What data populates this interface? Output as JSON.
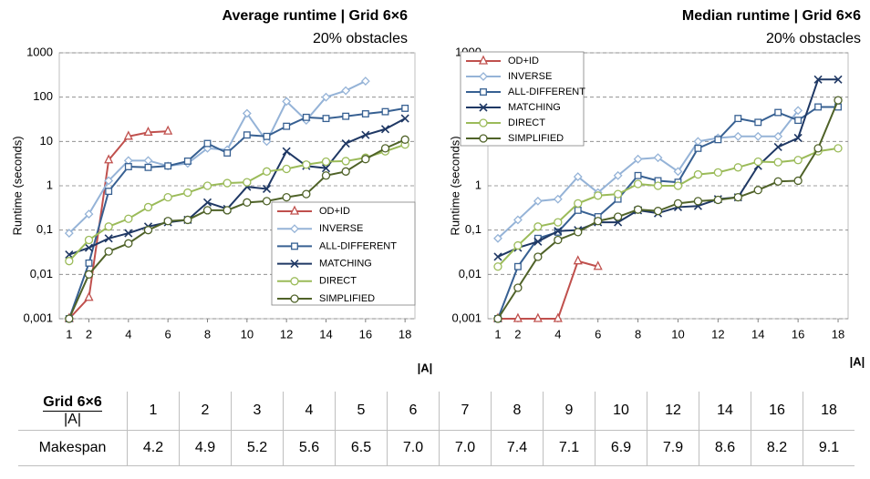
{
  "chart_data": [
    {
      "type": "line",
      "title": "Average runtime | Grid 6×6",
      "subtitle": "20% obstacles",
      "ylabel": "Runtime (seconds)",
      "xlabel": "|A|",
      "ylog": true,
      "grid": true,
      "legend": "lower right",
      "xlim": [
        0.5,
        18.5
      ],
      "xticks": [
        1,
        2,
        4,
        6,
        8,
        10,
        12,
        14,
        16,
        18
      ],
      "ylim": [
        0.001,
        1000
      ],
      "yticks": [
        {
          "value": 0.001,
          "label": "0,001"
        },
        {
          "value": 0.01,
          "label": "0,01"
        },
        {
          "value": 0.1,
          "label": "0,1"
        },
        1,
        10,
        100,
        1000
      ],
      "x": [
        1,
        2,
        3,
        4,
        5,
        6,
        7,
        8,
        9,
        10,
        11,
        12,
        13,
        14,
        15,
        16,
        17,
        18
      ],
      "series": [
        {
          "name": "OD+ID",
          "color": "#c0504d",
          "marker": "triangle",
          "values": [
            0.001,
            0.003,
            3.8,
            13,
            16,
            17,
            null,
            null,
            null,
            null,
            null,
            null,
            null,
            null,
            null,
            null,
            null,
            null
          ]
        },
        {
          "name": "INVERSE",
          "color": "#95b3d7",
          "marker": "diamond",
          "values": [
            0.085,
            0.23,
            1.3,
            3.7,
            3.7,
            2.8,
            3.2,
            7,
            6.5,
            43,
            10,
            80,
            30,
            100,
            140,
            230,
            null,
            null
          ]
        },
        {
          "name": "ALL-DIFFERENT",
          "color": "#376092",
          "marker": "square",
          "values": [
            0.001,
            0.018,
            0.75,
            2.7,
            2.6,
            2.8,
            3.6,
            9,
            5.5,
            14,
            13,
            22,
            35,
            33,
            37,
            42,
            47,
            56
          ]
        },
        {
          "name": "MATCHING",
          "color": "#1f3864",
          "marker": "x",
          "values": [
            0.028,
            0.04,
            0.065,
            0.085,
            0.12,
            0.15,
            0.17,
            0.42,
            0.3,
            0.95,
            0.85,
            6,
            2.8,
            2.5,
            9,
            14,
            19,
            33
          ]
        },
        {
          "name": "DIRECT",
          "color": "#9bbb59",
          "marker": "circle",
          "values": [
            0.02,
            0.06,
            0.12,
            0.18,
            0.33,
            0.55,
            0.7,
            1.0,
            1.15,
            1.2,
            2.1,
            2.4,
            3,
            3.5,
            3.6,
            4.3,
            6,
            8.5
          ]
        },
        {
          "name": "SIMPLIFIED",
          "color": "#4f6228",
          "marker": "circle",
          "values": [
            0.001,
            0.01,
            0.033,
            0.05,
            0.1,
            0.16,
            0.17,
            0.28,
            0.28,
            0.42,
            0.45,
            0.55,
            0.65,
            1.7,
            2.1,
            4,
            7,
            11
          ]
        }
      ]
    },
    {
      "type": "line",
      "title": "Median runtime | Grid 6×6",
      "subtitle": "20% obstacles",
      "ylabel": "Runtime (seconds)",
      "xlabel": "|A|",
      "ylog": true,
      "grid": true,
      "legend": "upper left",
      "xlim": [
        0.5,
        18.5
      ],
      "xticks": [
        1,
        2,
        4,
        6,
        8,
        10,
        12,
        14,
        16,
        18
      ],
      "ylim": [
        0.001,
        1000
      ],
      "yticks": [
        {
          "value": 0.001,
          "label": "0,001"
        },
        {
          "value": 0.01,
          "label": "0,01"
        },
        {
          "value": 0.1,
          "label": "0,1"
        },
        1,
        10,
        100,
        1000
      ],
      "x": [
        1,
        2,
        3,
        4,
        5,
        6,
        7,
        8,
        9,
        10,
        11,
        12,
        13,
        14,
        15,
        16,
        17,
        18
      ],
      "series": [
        {
          "name": "OD+ID",
          "color": "#c0504d",
          "marker": "triangle",
          "values": [
            0.001,
            0.001,
            0.001,
            0.001,
            0.02,
            0.015,
            null,
            null,
            null,
            null,
            null,
            null,
            null,
            null,
            null,
            null,
            null,
            null
          ]
        },
        {
          "name": "INVERSE",
          "color": "#95b3d7",
          "marker": "diamond",
          "values": [
            0.065,
            0.17,
            0.45,
            0.5,
            1.6,
            0.7,
            1.7,
            4,
            4.3,
            2.1,
            10,
            12,
            13,
            13,
            13,
            50,
            null,
            null
          ]
        },
        {
          "name": "ALL-DIFFERENT",
          "color": "#376092",
          "marker": "square",
          "values": [
            0.001,
            0.015,
            0.065,
            0.09,
            0.28,
            0.2,
            0.5,
            1.7,
            1.3,
            1.2,
            7,
            11,
            33,
            27,
            45,
            30,
            60,
            60
          ]
        },
        {
          "name": "MATCHING",
          "color": "#1f3864",
          "marker": "x",
          "values": [
            0.025,
            0.04,
            0.055,
            0.095,
            0.1,
            0.15,
            0.15,
            0.28,
            0.24,
            0.33,
            0.35,
            0.5,
            0.55,
            2.8,
            7.5,
            12,
            250,
            250
          ]
        },
        {
          "name": "DIRECT",
          "color": "#9bbb59",
          "marker": "circle",
          "values": [
            0.015,
            0.045,
            0.12,
            0.15,
            0.4,
            0.6,
            0.65,
            1.1,
            1.0,
            1.0,
            1.8,
            2.0,
            2.6,
            3.5,
            3.4,
            3.8,
            6,
            7
          ]
        },
        {
          "name": "SIMPLIFIED",
          "color": "#4f6228",
          "marker": "circle",
          "values": [
            0.001,
            0.005,
            0.025,
            0.06,
            0.09,
            0.16,
            0.2,
            0.29,
            0.27,
            0.4,
            0.45,
            0.48,
            0.55,
            0.8,
            1.25,
            1.3,
            7,
            85
          ]
        }
      ]
    }
  ],
  "table": {
    "header": [
      "Grid 6×6",
      "|A|"
    ],
    "columns": [
      1,
      2,
      3,
      4,
      5,
      6,
      7,
      8,
      9,
      10,
      12,
      14,
      16,
      18
    ],
    "rows": [
      {
        "label": "Makespan",
        "values": [
          "4.2",
          "4.9",
          "5.2",
          "5.6",
          "6.5",
          "7.0",
          "7.0",
          "7.4",
          "7.1",
          "6.9",
          "7.9",
          "8.6",
          "8.2",
          "9.1"
        ]
      }
    ]
  }
}
